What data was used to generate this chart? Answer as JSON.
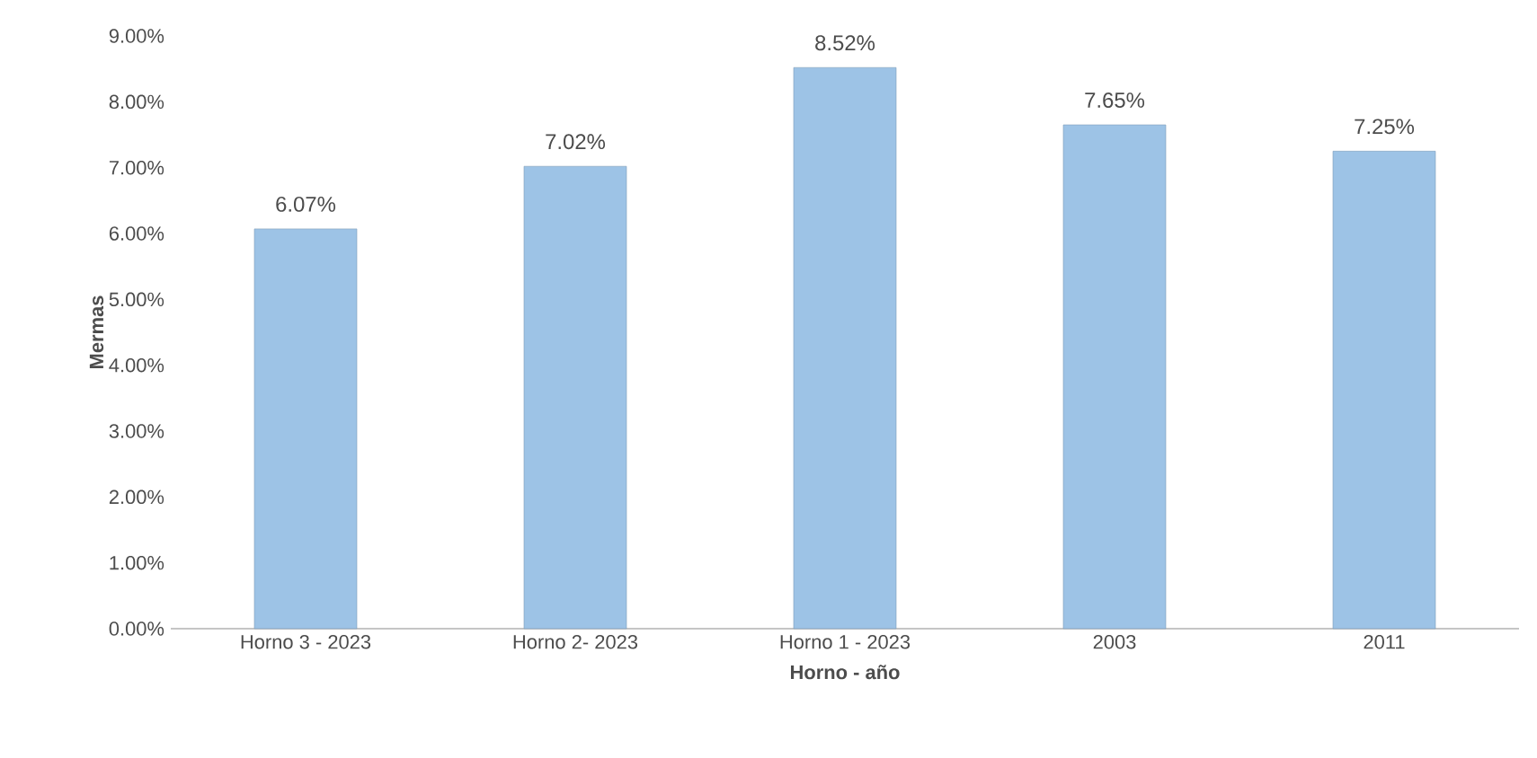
{
  "chart_data": {
    "type": "bar",
    "categories": [
      "Horno 3 - 2023",
      "Horno 2- 2023",
      "Horno 1 - 2023",
      "2003",
      "2011"
    ],
    "values": [
      6.07,
      7.02,
      8.52,
      7.65,
      7.25
    ],
    "value_labels": [
      "6.07%",
      "7.02%",
      "8.52%",
      "7.65%",
      "7.25%"
    ],
    "color": "#9dc3e6",
    "xlabel": "Horno - año",
    "ylabel": "Mermas",
    "ylim": [
      0,
      9
    ],
    "yticks": [
      {
        "value": 0,
        "label": "0.00%"
      },
      {
        "value": 1,
        "label": "1.00%"
      },
      {
        "value": 2,
        "label": "2.00%"
      },
      {
        "value": 3,
        "label": "3.00%"
      },
      {
        "value": 4,
        "label": "4.00%"
      },
      {
        "value": 5,
        "label": "5.00%"
      },
      {
        "value": 6,
        "label": "6.00%"
      },
      {
        "value": 7,
        "label": "7.00%"
      },
      {
        "value": 8,
        "label": "8.00%"
      },
      {
        "value": 9,
        "label": "9.00%"
      }
    ],
    "grid": false
  }
}
